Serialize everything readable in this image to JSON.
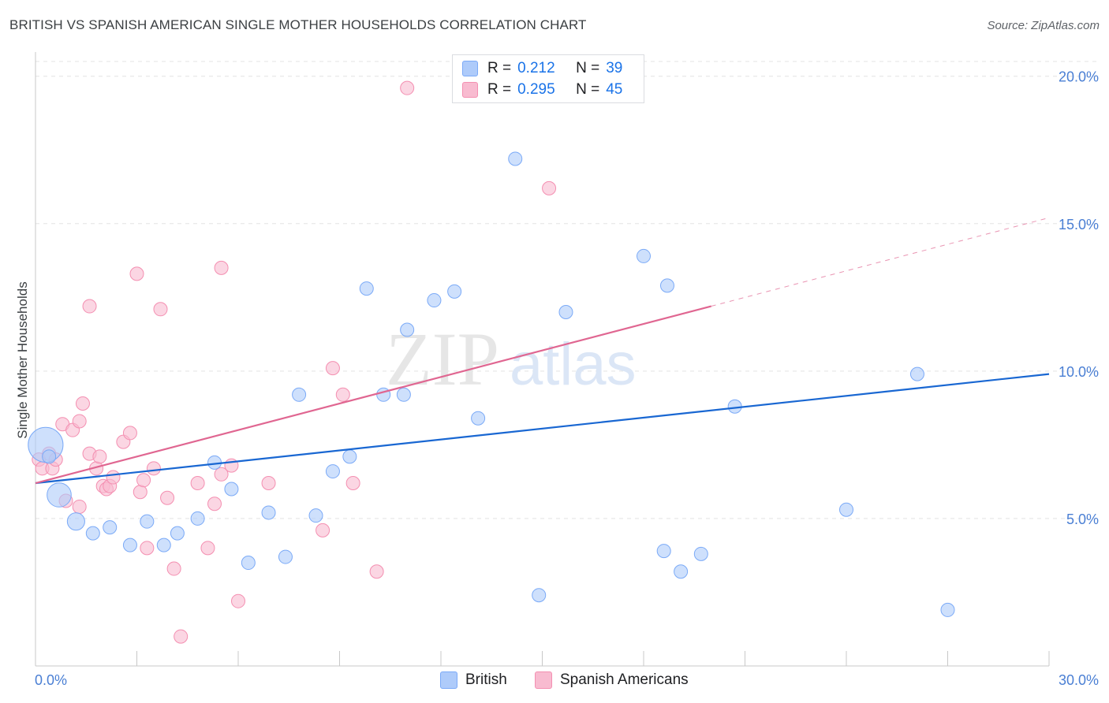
{
  "title": "BRITISH VS SPANISH AMERICAN SINGLE MOTHER HOUSEHOLDS CORRELATION CHART",
  "source": "Source: ZipAtlas.com",
  "watermark": {
    "zip": "ZIP",
    "atlas": "atlas"
  },
  "legend": {
    "r_label": "R =",
    "n_label": "N =",
    "british": {
      "r": "0.212",
      "n": "39"
    },
    "spanish": {
      "r": "0.295",
      "n": "45"
    }
  },
  "colors": {
    "british_fill": "#aecbfa",
    "british_stroke": "#7baaf7",
    "british_line": "#1967d2",
    "spanish_fill": "#f8bbd0",
    "spanish_stroke": "#f48fb1",
    "spanish_line": "#e06691",
    "axis_label": "#4a7fd4"
  },
  "chart_data": {
    "type": "scatter",
    "title": "BRITISH VS SPANISH AMERICAN SINGLE MOTHER HOUSEHOLDS CORRELATION CHART",
    "xlabel": "",
    "ylabel": "Single Mother Households",
    "xlim": [
      0,
      30
    ],
    "ylim": [
      0,
      20.5
    ],
    "x_tick_labels": [
      "0.0%",
      "30.0%"
    ],
    "y_ticks": [
      5,
      10,
      15,
      20
    ],
    "y_tick_labels": [
      "5.0%",
      "10.0%",
      "15.0%",
      "20.0%"
    ],
    "grid": "horizontal dashed",
    "legend_position": "top-center",
    "series": [
      {
        "name": "British",
        "r": 0.212,
        "n": 39,
        "trend": {
          "x": [
            0,
            30
          ],
          "y": [
            6.2,
            9.9
          ],
          "dashed_from": null
        },
        "points": [
          [
            0.3,
            7.5,
            2.6
          ],
          [
            0.7,
            5.8,
            1.8
          ],
          [
            1.2,
            4.9,
            1.3
          ],
          [
            1.7,
            4.5,
            1
          ],
          [
            2.2,
            4.7,
            1
          ],
          [
            2.8,
            4.1,
            1
          ],
          [
            3.3,
            4.9,
            1
          ],
          [
            3.8,
            4.1,
            1
          ],
          [
            4.2,
            4.5,
            1
          ],
          [
            4.8,
            5.0,
            1
          ],
          [
            5.3,
            6.9,
            1
          ],
          [
            5.8,
            6.0,
            1
          ],
          [
            6.3,
            3.5,
            1
          ],
          [
            6.9,
            5.2,
            1
          ],
          [
            7.4,
            3.7,
            1
          ],
          [
            7.8,
            9.2,
            1
          ],
          [
            8.3,
            5.1,
            1
          ],
          [
            8.8,
            6.6,
            1
          ],
          [
            9.3,
            7.1,
            1
          ],
          [
            9.8,
            12.8,
            1
          ],
          [
            10.3,
            9.2,
            1
          ],
          [
            11.0,
            11.4,
            1
          ],
          [
            10.9,
            9.2,
            1
          ],
          [
            11.8,
            12.4,
            1
          ],
          [
            12.4,
            12.7,
            1
          ],
          [
            13.1,
            8.4,
            1
          ],
          [
            14.2,
            17.2,
            1
          ],
          [
            14.9,
            2.4,
            1
          ],
          [
            15.7,
            12.0,
            1
          ],
          [
            18.0,
            13.9,
            1
          ],
          [
            18.6,
            3.9,
            1
          ],
          [
            18.7,
            12.9,
            1
          ],
          [
            19.1,
            3.2,
            1
          ],
          [
            19.7,
            3.8,
            1
          ],
          [
            20.7,
            8.8,
            1
          ],
          [
            24.0,
            5.3,
            1
          ],
          [
            26.1,
            9.9,
            1
          ],
          [
            27.0,
            1.9,
            1
          ],
          [
            0.4,
            7.1,
            1
          ]
        ]
      },
      {
        "name": "Spanish Americans",
        "r": 0.295,
        "n": 45,
        "trend": {
          "x": [
            0,
            30
          ],
          "y": [
            6.2,
            15.2
          ],
          "dashed_from": 20.0
        },
        "points": [
          [
            0.1,
            7.0,
            1
          ],
          [
            0.2,
            6.7,
            1
          ],
          [
            0.4,
            7.2,
            1
          ],
          [
            0.5,
            6.7,
            1
          ],
          [
            0.6,
            7.0,
            1
          ],
          [
            0.9,
            5.6,
            1
          ],
          [
            0.8,
            8.2,
            1
          ],
          [
            1.1,
            8.0,
            1
          ],
          [
            1.3,
            8.3,
            1
          ],
          [
            1.3,
            5.4,
            1
          ],
          [
            1.4,
            8.9,
            1
          ],
          [
            1.6,
            7.2,
            1
          ],
          [
            1.6,
            12.2,
            1
          ],
          [
            1.8,
            6.7,
            1
          ],
          [
            1.9,
            7.1,
            1
          ],
          [
            2.0,
            6.1,
            1
          ],
          [
            2.1,
            6.0,
            1
          ],
          [
            2.2,
            6.1,
            1
          ],
          [
            2.3,
            6.4,
            1
          ],
          [
            2.6,
            7.6,
            1
          ],
          [
            2.8,
            7.9,
            1
          ],
          [
            3.0,
            13.3,
            1
          ],
          [
            3.1,
            5.9,
            1
          ],
          [
            3.2,
            6.3,
            1
          ],
          [
            3.3,
            4.0,
            1
          ],
          [
            3.5,
            6.7,
            1
          ],
          [
            3.7,
            12.1,
            1
          ],
          [
            3.9,
            5.7,
            1
          ],
          [
            4.1,
            3.3,
            1
          ],
          [
            4.3,
            1.0,
            1
          ],
          [
            4.8,
            6.2,
            1
          ],
          [
            5.1,
            4.0,
            1
          ],
          [
            5.3,
            5.5,
            1
          ],
          [
            5.5,
            6.5,
            1
          ],
          [
            5.5,
            13.5,
            1
          ],
          [
            5.8,
            6.8,
            1
          ],
          [
            6.0,
            2.2,
            1
          ],
          [
            6.9,
            6.2,
            1
          ],
          [
            8.5,
            4.6,
            1
          ],
          [
            8.8,
            10.1,
            1
          ],
          [
            9.1,
            9.2,
            1
          ],
          [
            9.4,
            6.2,
            1
          ],
          [
            10.1,
            3.2,
            1
          ],
          [
            11.0,
            19.6,
            1
          ],
          [
            15.2,
            16.2,
            1
          ]
        ]
      }
    ]
  }
}
